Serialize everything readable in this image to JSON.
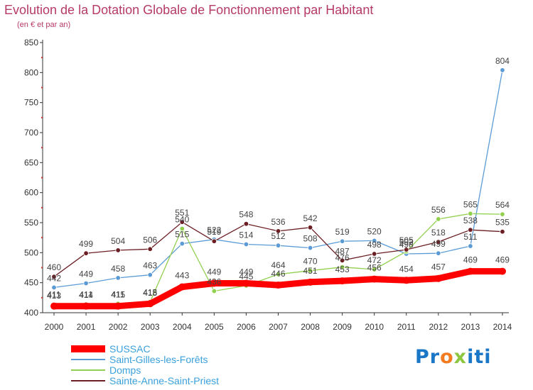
{
  "chart_data": {
    "type": "line",
    "title": "Evolution de la Dotation Globale de Fonctionnement par Habitant",
    "subtitle": "(en € et par an)",
    "xlabel": "",
    "ylabel": "",
    "x": [
      "2000",
      "2001",
      "2002",
      "2003",
      "2004",
      "2005",
      "2006",
      "2007",
      "2008",
      "2009",
      "2010",
      "2011",
      "2012",
      "2013",
      "2014"
    ],
    "ylim": [
      400,
      850
    ],
    "ytick_step": 50,
    "grid": false,
    "legend_position": "bottom-left",
    "series": [
      {
        "name": "SUSSAC",
        "color": "#ff0000",
        "values": [
          411,
          411,
          411,
          415,
          443,
          449,
          449,
          446,
          451,
          453,
          456,
          454,
          457,
          469,
          469
        ]
      },
      {
        "name": "Saint-Gilles-les-Forêts",
        "color": "#5b9bd5",
        "values": [
          442,
          449,
          458,
          463,
          515,
          522,
          514,
          512,
          508,
          519,
          520,
          498,
          499,
          511,
          804
        ]
      },
      {
        "name": "Domps",
        "color": "#92d050",
        "values": [
          413,
          414,
          415,
          418,
          540,
          436,
          445,
          464,
          470,
          476,
          472,
          502,
          556,
          565,
          564
        ]
      },
      {
        "name": "Sainte-Anne-Saint-Priest",
        "color": "#6b1e23",
        "values": [
          460,
          499,
          504,
          506,
          551,
          519,
          548,
          536,
          542,
          487,
          498,
          505,
          518,
          538,
          535
        ]
      }
    ]
  },
  "logo": {
    "text": "Proxiti",
    "parts": [
      "Pr",
      "o",
      "x",
      "iti"
    ]
  }
}
